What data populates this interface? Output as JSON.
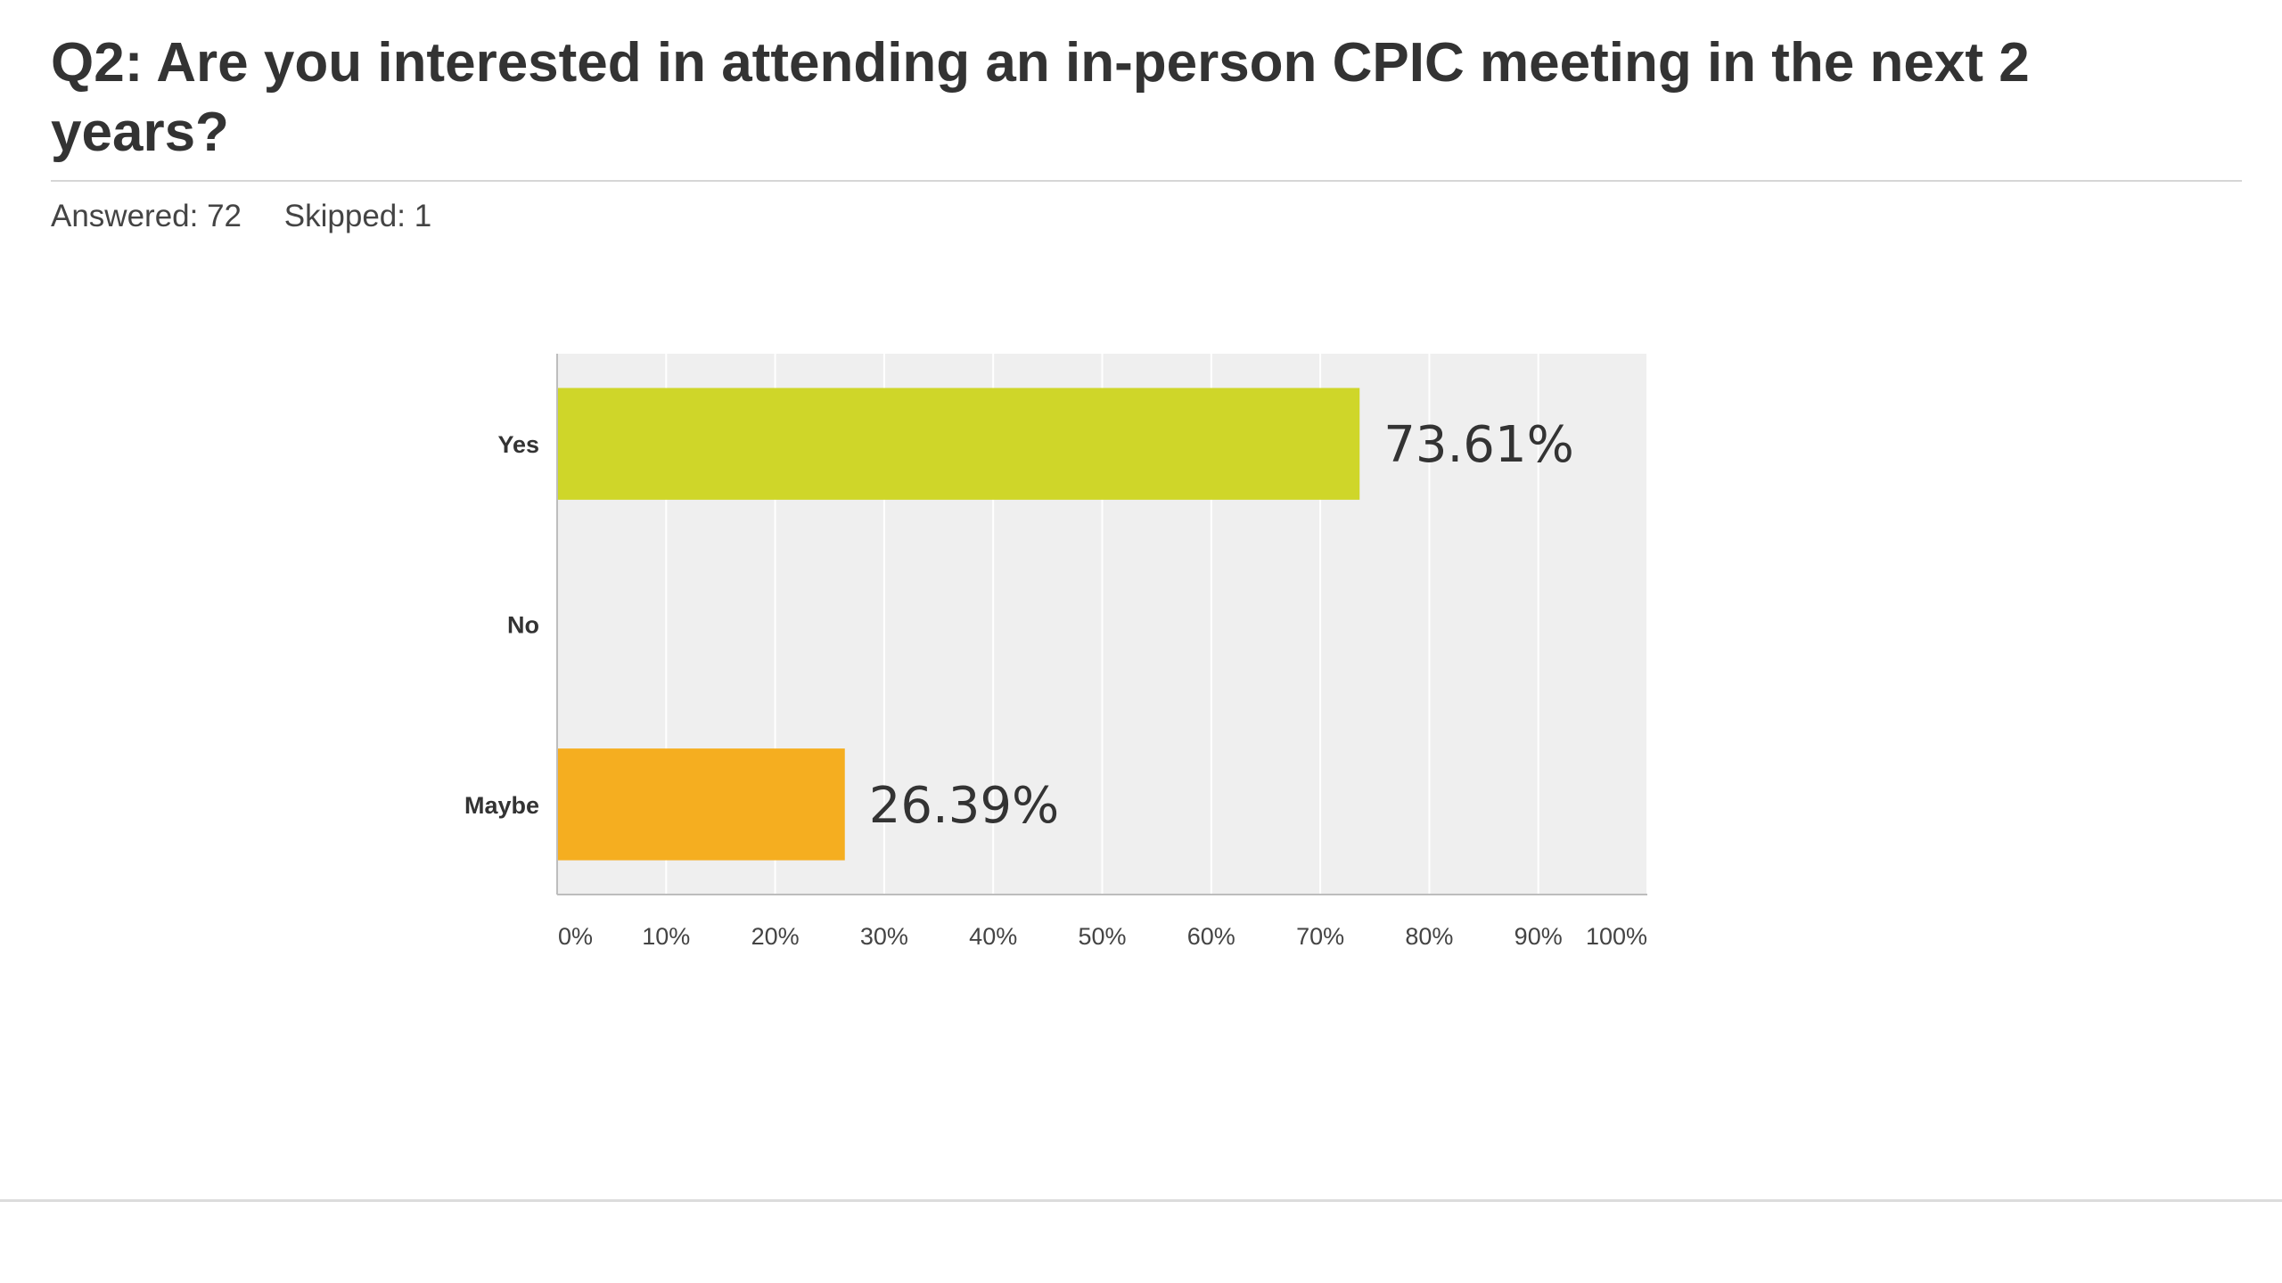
{
  "question": {
    "title": "Q2: Are you interested in attending an in-person CPIC meeting in the next 2 years?",
    "answered": "Answered: 72",
    "skipped": "Skipped: 1"
  },
  "colors": {
    "plot_background": "#efefef",
    "gridline": "#ffffff",
    "axis": "#bdbdbd"
  },
  "chart_data": {
    "type": "bar",
    "orientation": "horizontal",
    "categories": [
      "Yes",
      "No",
      "Maybe"
    ],
    "values": [
      73.61,
      0,
      26.39
    ],
    "data_labels": [
      "73.61%",
      "",
      "26.39%"
    ],
    "colors": [
      "#cfd629",
      "#cfd629",
      "#f5ae20"
    ],
    "xlim": [
      0,
      100
    ],
    "xticks": [
      "0%",
      "10%",
      "20%",
      "30%",
      "40%",
      "50%",
      "60%",
      "70%",
      "80%",
      "90%",
      "100%"
    ],
    "title": "",
    "xlabel": "",
    "ylabel": "",
    "grid": "vertical"
  }
}
